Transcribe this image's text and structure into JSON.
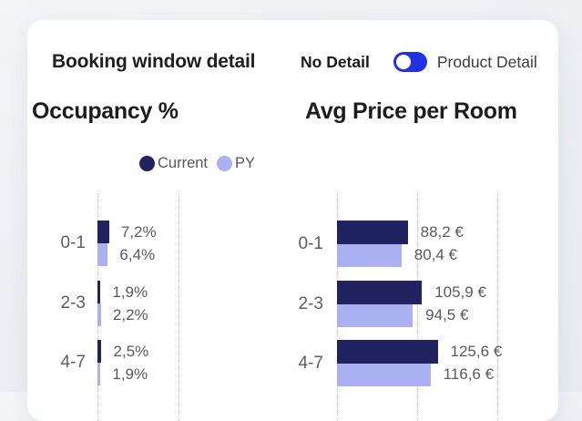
{
  "card": {
    "title": "Booking window detail",
    "toggle": {
      "left_label": "No Detail",
      "right_label": "Product Detail",
      "state": "left",
      "color": "#2130e0"
    }
  },
  "colors": {
    "current": "#20235f",
    "py": "#aab0f1",
    "toggle_accent": "#2130e0",
    "label_gray": "#605e5c"
  },
  "chart_data": [
    {
      "type": "bar",
      "orientation": "horizontal",
      "title": "Occupancy %",
      "categories": [
        "0-1",
        "2-3",
        "4-7"
      ],
      "series": [
        {
          "name": "Current",
          "color": "#20235f",
          "values": [
            7.2,
            1.9,
            2.5
          ],
          "labels": [
            "7,2%",
            "1,9%",
            "2,5%"
          ]
        },
        {
          "name": "PY",
          "color": "#aab0f1",
          "values": [
            6.4,
            2.2,
            1.9
          ],
          "labels": [
            "6,4%",
            "2,2%",
            "1,9%"
          ]
        }
      ],
      "x_axis": {
        "min": 0,
        "gridline_interval": 50,
        "unit": "%"
      },
      "grid": "dotted-vertical",
      "legend_position": "top-center",
      "value_labels": "outside-end"
    },
    {
      "type": "bar",
      "orientation": "horizontal",
      "title": "Avg Price per Room",
      "categories": [
        "0-1",
        "2-3",
        "4-7"
      ],
      "series": [
        {
          "name": "Current",
          "color": "#20235f",
          "values": [
            88.2,
            105.9,
            125.6
          ],
          "labels": [
            "88,2 €",
            "105,9 €",
            "125,6 €"
          ]
        },
        {
          "name": "PY",
          "color": "#aab0f1",
          "values": [
            80.4,
            94.5,
            116.6
          ],
          "labels": [
            "80,4 €",
            "94,5 €",
            "116,6 €"
          ]
        }
      ],
      "x_axis": {
        "min": 0,
        "gridline_interval": 100,
        "unit": "€"
      },
      "grid": "dotted-vertical",
      "legend_position": "none",
      "value_labels": "outside-end"
    }
  ]
}
